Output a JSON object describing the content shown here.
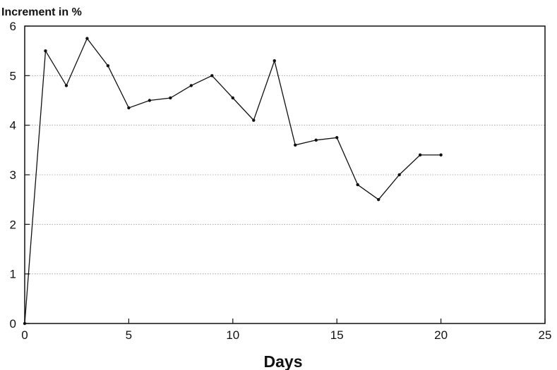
{
  "chart_data": {
    "type": "line",
    "title": "",
    "ylabel": "Increment in %",
    "xlabel": "Days",
    "xlim": [
      0,
      25
    ],
    "ylim": [
      0,
      6
    ],
    "x_ticks": [
      0,
      5,
      10,
      15,
      20,
      25
    ],
    "y_ticks": [
      0,
      1,
      2,
      3,
      4,
      5,
      6
    ],
    "grid": "horizontal dotted",
    "series": [
      {
        "x": [
          0,
          1,
          2,
          3,
          4,
          5,
          6,
          7,
          8,
          9,
          10,
          11,
          12,
          13,
          14,
          15,
          16,
          17,
          18,
          19,
          20
        ],
        "y": [
          0,
          5.5,
          4.8,
          5.75,
          5.2,
          4.35,
          4.5,
          4.55,
          4.8,
          5.0,
          4.55,
          4.1,
          5.3,
          3.6,
          3.7,
          3.75,
          2.8,
          2.5,
          3.0,
          3.4,
          3.4
        ]
      }
    ],
    "colors": {
      "line": "#111111",
      "grid": "#999999",
      "frame": "#111111"
    }
  }
}
